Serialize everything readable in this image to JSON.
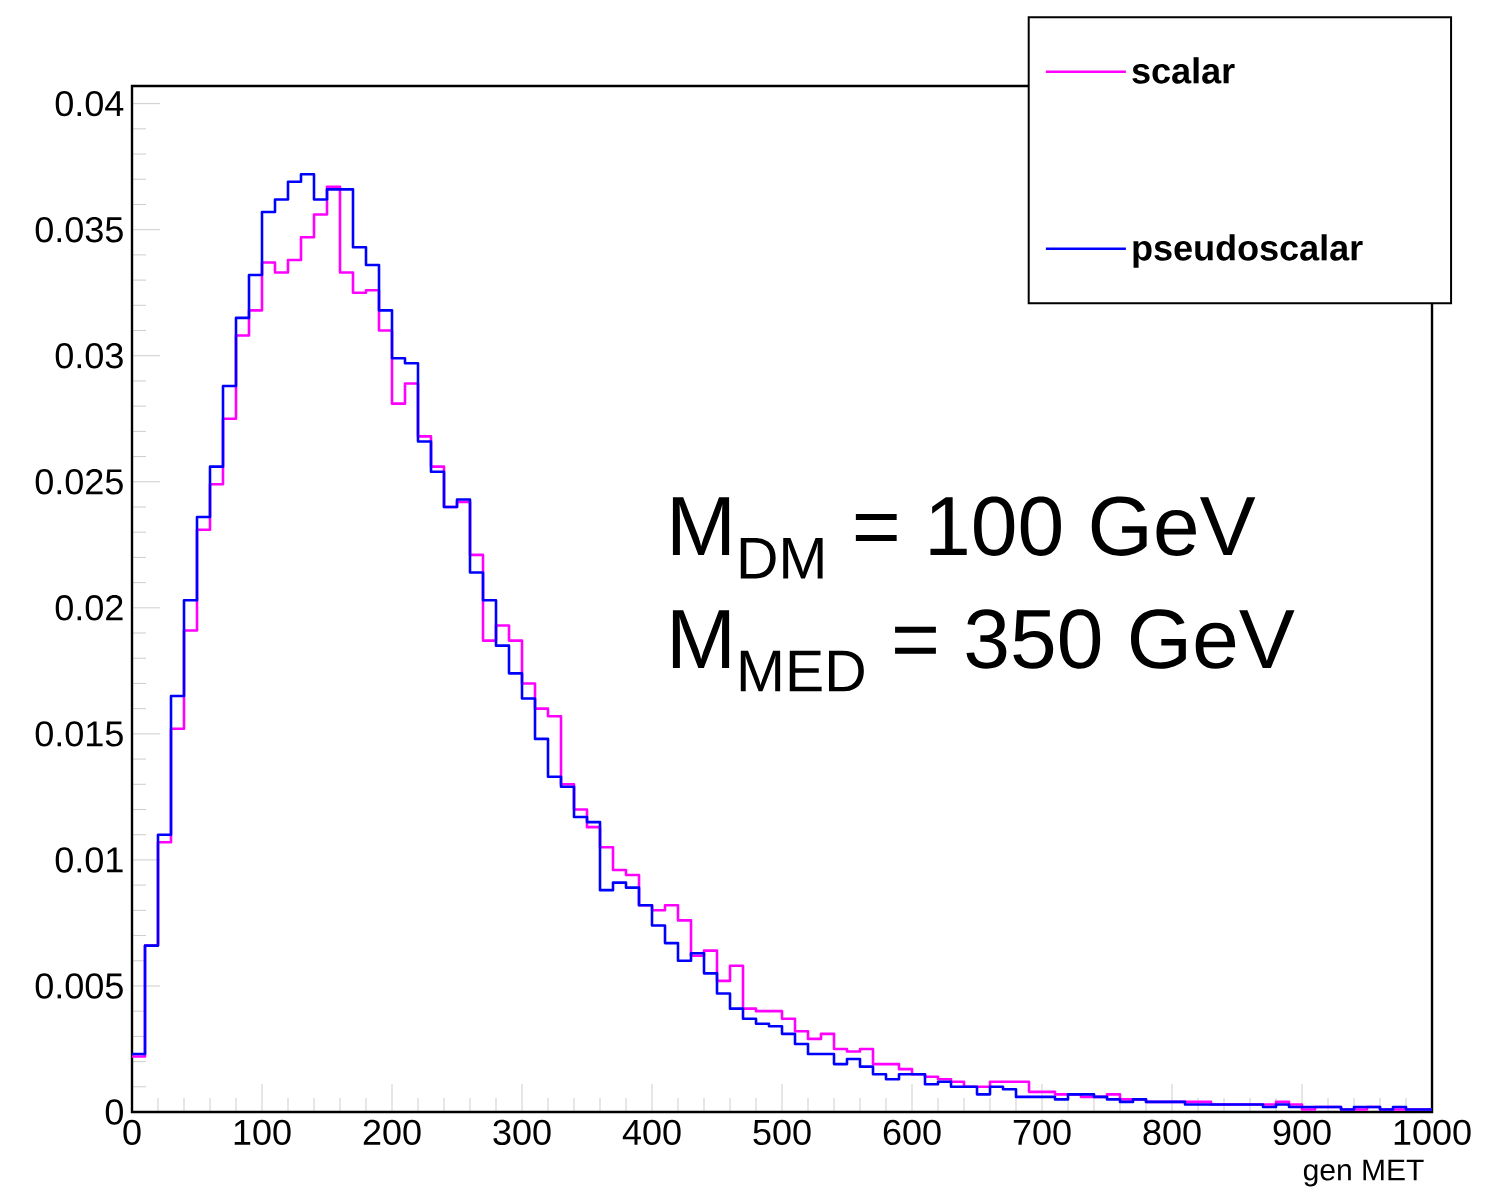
{
  "chart_data": {
    "type": "histogram",
    "bins": [
      0,
      10,
      20,
      30,
      40,
      50,
      60,
      70,
      80,
      90,
      100,
      110,
      120,
      130,
      140,
      150,
      160,
      170,
      180,
      190,
      200,
      210,
      220,
      230,
      240,
      250,
      260,
      270,
      280,
      290,
      300,
      310,
      320,
      330,
      340,
      350,
      360,
      370,
      380,
      390,
      400,
      410,
      420,
      430,
      440,
      450,
      460,
      470,
      480,
      490,
      500,
      510,
      520,
      530,
      540,
      550,
      560,
      570,
      580,
      590,
      600,
      610,
      620,
      630,
      640,
      650,
      660,
      670,
      680,
      690,
      700,
      710,
      720,
      730,
      740,
      750,
      760,
      770,
      780,
      790,
      800,
      810,
      820,
      830,
      840,
      850,
      860,
      870,
      880,
      890,
      900,
      910,
      920,
      930,
      940,
      950,
      960,
      970,
      980,
      990,
      1000
    ],
    "series": [
      {
        "name": "scalar",
        "color": "#ff00ff",
        "values": [
          0.0022,
          0.0066,
          0.0107,
          0.0152,
          0.0191,
          0.0231,
          0.0249,
          0.0275,
          0.0308,
          0.0318,
          0.0337,
          0.0333,
          0.0338,
          0.0347,
          0.0356,
          0.0367,
          0.0333,
          0.0325,
          0.0326,
          0.031,
          0.0281,
          0.0289,
          0.0268,
          0.0256,
          0.024,
          0.0242,
          0.0221,
          0.0187,
          0.0193,
          0.0187,
          0.017,
          0.016,
          0.0157,
          0.013,
          0.012,
          0.0113,
          0.0105,
          0.0096,
          0.0094,
          0.0082,
          0.008,
          0.0082,
          0.0076,
          0.0062,
          0.0064,
          0.0052,
          0.0058,
          0.0041,
          0.004,
          0.004,
          0.0037,
          0.0032,
          0.0029,
          0.0031,
          0.0025,
          0.0024,
          0.0025,
          0.0019,
          0.0019,
          0.0017,
          0.0015,
          0.0014,
          0.0013,
          0.0012,
          0.001,
          0.001,
          0.0012,
          0.0012,
          0.0012,
          0.0008,
          0.0008,
          0.0007,
          0.0007,
          0.0006,
          0.0006,
          0.0007,
          0.0005,
          0.0005,
          0.0004,
          0.0004,
          0.0004,
          0.0004,
          0.0004,
          0.0003,
          0.0003,
          0.0003,
          0.0003,
          0.0003,
          0.0004,
          0.0003,
          0.0001,
          0.0002,
          0.0002,
          0.0001,
          0.0001,
          0.0002,
          0.0001,
          0.0001,
          0.0001,
          0.0001
        ]
      },
      {
        "name": "pseudoscalar",
        "color": "#0000ff",
        "values": [
          0.0023,
          0.0066,
          0.011,
          0.0165,
          0.0203,
          0.0236,
          0.0256,
          0.0288,
          0.0315,
          0.0332,
          0.0357,
          0.0362,
          0.0369,
          0.0372,
          0.0362,
          0.0366,
          0.0366,
          0.0343,
          0.0336,
          0.0318,
          0.0299,
          0.0297,
          0.0266,
          0.0254,
          0.024,
          0.0243,
          0.0214,
          0.0203,
          0.0185,
          0.0174,
          0.0164,
          0.0148,
          0.0133,
          0.0129,
          0.0117,
          0.0115,
          0.0088,
          0.0091,
          0.0089,
          0.0082,
          0.0074,
          0.0067,
          0.006,
          0.0063,
          0.0055,
          0.0047,
          0.0041,
          0.0037,
          0.0035,
          0.0034,
          0.0031,
          0.0027,
          0.0023,
          0.0023,
          0.0019,
          0.0021,
          0.0018,
          0.0015,
          0.0013,
          0.0015,
          0.0015,
          0.0011,
          0.0012,
          0.001,
          0.001,
          0.0007,
          0.001,
          0.0009,
          0.0006,
          0.0006,
          0.0006,
          0.0005,
          0.0007,
          0.0007,
          0.0006,
          0.0005,
          0.0004,
          0.0005,
          0.0004,
          0.0004,
          0.0004,
          0.0003,
          0.0003,
          0.0003,
          0.0003,
          0.0003,
          0.0003,
          0.0002,
          0.0003,
          0.0002,
          0.0002,
          0.0002,
          0.0002,
          0.0001,
          0.0002,
          0.0002,
          0.0001,
          0.0002,
          0.0001,
          0.0001
        ]
      }
    ],
    "xlabel": "gen MET",
    "xlim": [
      0,
      1000
    ],
    "xticks": [
      0,
      100,
      200,
      300,
      400,
      500,
      600,
      700,
      800,
      900,
      1000
    ],
    "ylim": [
      0,
      0.0407
    ],
    "yticks": [
      0,
      0.005,
      0.01,
      0.015,
      0.02,
      0.025,
      0.03,
      0.035,
      0.04
    ],
    "legend": "top right",
    "annotations": [
      "M$_{DM}$ = 100 GeV",
      "M$_{MED}$ = 350 GeV"
    ]
  }
}
